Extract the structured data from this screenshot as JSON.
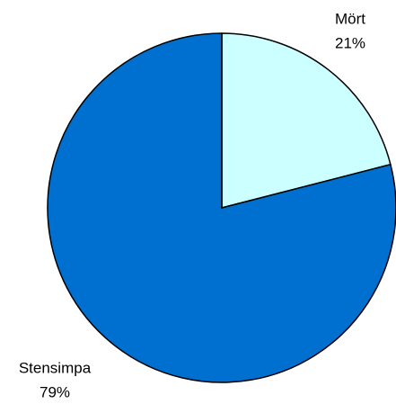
{
  "chart_data": {
    "type": "pie",
    "categories": [
      "Mört",
      "Stensimpa"
    ],
    "values": [
      21,
      79
    ],
    "value_labels": [
      "21%",
      "79%"
    ],
    "colors": [
      "#ccffff",
      "#0070d0"
    ]
  }
}
